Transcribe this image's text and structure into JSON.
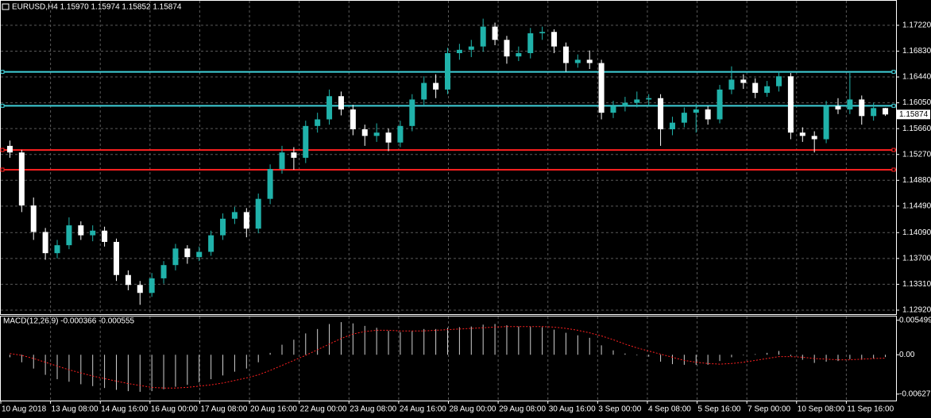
{
  "chart_data": {
    "type": "candlestick",
    "title": "EURUSD,H4  1.15970 1.15974 1.15852 1.15874",
    "ylim": [
      1.1286,
      1.1759
    ],
    "yticks": [
      {
        "value": 1.1722,
        "label": "1.17220"
      },
      {
        "value": 1.1683,
        "label": "1.16830"
      },
      {
        "value": 1.1644,
        "label": "1.16440"
      },
      {
        "value": 1.1605,
        "label": "1.16050"
      },
      {
        "value": 1.1566,
        "label": "1.15660"
      },
      {
        "value": 1.1527,
        "label": "1.15270"
      },
      {
        "value": 1.1488,
        "label": "1.14880"
      },
      {
        "value": 1.1449,
        "label": "1.14490"
      },
      {
        "value": 1.1409,
        "label": "1.14090"
      },
      {
        "value": 1.137,
        "label": "1.13700"
      },
      {
        "value": 1.1331,
        "label": "1.13310"
      },
      {
        "value": 1.1292,
        "label": "1.12920"
      }
    ],
    "up_color": "#20b2aa",
    "down_color": "#ffffff",
    "grid": true,
    "xlabels": [
      "10 Aug 2018",
      "13 Aug 08:00",
      "14 Aug 16:00",
      "16 Aug 00:00",
      "17 Aug 08:00",
      "20 Aug 16:00",
      "22 Aug 00:00",
      "23 Aug 08:00",
      "24 Aug 16:00",
      "28 Aug 00:00",
      "29 Aug 08:00",
      "30 Aug 16:00",
      "3 Sep 00:00",
      "4 Sep 08:00",
      "5 Sep 16:00",
      "7 Sep 00:00",
      "10 Sep 08:00",
      "11 Sep 16:00"
    ],
    "hlines": [
      {
        "value": 1.16517,
        "color": "#40d0d8"
      },
      {
        "value": 1.16005,
        "color": "#40d0d8"
      },
      {
        "value": 1.15338,
        "color": "#ff2020"
      },
      {
        "value": 1.1504,
        "color": "#ff2020"
      }
    ],
    "ohlc": [
      [
        1.154,
        1.1548,
        1.1522,
        1.153
      ],
      [
        1.153,
        1.1534,
        1.144,
        1.145
      ],
      [
        1.145,
        1.1462,
        1.1398,
        1.141
      ],
      [
        1.141,
        1.1416,
        1.1368,
        1.1378
      ],
      [
        1.1378,
        1.1398,
        1.137,
        1.139
      ],
      [
        1.139,
        1.1432,
        1.1384,
        1.142
      ],
      [
        1.142,
        1.1426,
        1.1398,
        1.1405
      ],
      [
        1.1405,
        1.142,
        1.1396,
        1.1412
      ],
      [
        1.1412,
        1.1418,
        1.1388,
        1.1395
      ],
      [
        1.1395,
        1.14,
        1.1336,
        1.1345
      ],
      [
        1.1345,
        1.1352,
        1.1322,
        1.133
      ],
      [
        1.133,
        1.1336,
        1.13,
        1.1318
      ],
      [
        1.1318,
        1.1348,
        1.1312,
        1.134
      ],
      [
        1.134,
        1.1366,
        1.1332,
        1.136
      ],
      [
        1.136,
        1.1392,
        1.1352,
        1.1385
      ],
      [
        1.1385,
        1.139,
        1.1362,
        1.1372
      ],
      [
        1.1372,
        1.1388,
        1.1366,
        1.138
      ],
      [
        1.138,
        1.1412,
        1.1374,
        1.1405
      ],
      [
        1.1405,
        1.1438,
        1.1398,
        1.143
      ],
      [
        1.143,
        1.1448,
        1.1422,
        1.144
      ],
      [
        1.144,
        1.1446,
        1.1402,
        1.1415
      ],
      [
        1.1415,
        1.1468,
        1.1408,
        1.146
      ],
      [
        1.146,
        1.1512,
        1.1452,
        1.1505
      ],
      [
        1.1505,
        1.154,
        1.1498,
        1.153
      ],
      [
        1.153,
        1.1538,
        1.1504,
        1.1522
      ],
      [
        1.1522,
        1.1578,
        1.1514,
        1.157
      ],
      [
        1.157,
        1.159,
        1.156,
        1.158
      ],
      [
        1.158,
        1.1625,
        1.1572,
        1.1615
      ],
      [
        1.1615,
        1.1622,
        1.1586,
        1.1595
      ],
      [
        1.1595,
        1.1602,
        1.1556,
        1.1565
      ],
      [
        1.1565,
        1.1572,
        1.154,
        1.1555
      ],
      [
        1.1555,
        1.1574,
        1.1546,
        1.156
      ],
      [
        1.156,
        1.1566,
        1.1532,
        1.1545
      ],
      [
        1.1545,
        1.1578,
        1.1538,
        1.157
      ],
      [
        1.157,
        1.1618,
        1.1562,
        1.161
      ],
      [
        1.161,
        1.1645,
        1.1602,
        1.1635
      ],
      [
        1.1635,
        1.1648,
        1.1612,
        1.1625
      ],
      [
        1.1625,
        1.1688,
        1.1618,
        1.168
      ],
      [
        1.168,
        1.1694,
        1.167,
        1.1685
      ],
      [
        1.1685,
        1.17,
        1.1674,
        1.169
      ],
      [
        1.169,
        1.1732,
        1.1682,
        1.172
      ],
      [
        1.172,
        1.1726,
        1.1692,
        1.17
      ],
      [
        1.17,
        1.1706,
        1.1664,
        1.1675
      ],
      [
        1.1675,
        1.169,
        1.1668,
        1.168
      ],
      [
        1.168,
        1.1718,
        1.1672,
        1.171
      ],
      [
        1.171,
        1.172,
        1.17,
        1.1712
      ],
      [
        1.1712,
        1.1716,
        1.168,
        1.169
      ],
      [
        1.169,
        1.1696,
        1.1652,
        1.1665
      ],
      [
        1.1665,
        1.1678,
        1.1658,
        1.167
      ],
      [
        1.167,
        1.1684,
        1.1656,
        1.1665
      ],
      [
        1.1665,
        1.167,
        1.158,
        1.159
      ],
      [
        1.159,
        1.1608,
        1.1582,
        1.16
      ],
      [
        1.16,
        1.1614,
        1.1592,
        1.1605
      ],
      [
        1.1605,
        1.1622,
        1.1598,
        1.161
      ],
      [
        1.161,
        1.1618,
        1.16,
        1.1612
      ],
      [
        1.1612,
        1.1618,
        1.154,
        1.1565
      ],
      [
        1.1565,
        1.1584,
        1.1556,
        1.1575
      ],
      [
        1.1575,
        1.1598,
        1.1568,
        1.159
      ],
      [
        1.159,
        1.1604,
        1.156,
        1.1595
      ],
      [
        1.1595,
        1.16,
        1.1572,
        1.158
      ],
      [
        1.158,
        1.1632,
        1.1574,
        1.1625
      ],
      [
        1.1625,
        1.166,
        1.1618,
        1.164
      ],
      [
        1.164,
        1.1648,
        1.1626,
        1.1635
      ],
      [
        1.1635,
        1.1642,
        1.1612,
        1.162
      ],
      [
        1.162,
        1.1638,
        1.1614,
        1.163
      ],
      [
        1.163,
        1.1652,
        1.1622,
        1.1645
      ],
      [
        1.1645,
        1.165,
        1.155,
        1.156
      ],
      [
        1.156,
        1.1568,
        1.1546,
        1.1555
      ],
      [
        1.1555,
        1.1562,
        1.153,
        1.155
      ],
      [
        1.155,
        1.1608,
        1.1544,
        1.16
      ],
      [
        1.16,
        1.1612,
        1.1588,
        1.1595
      ],
      [
        1.1595,
        1.165,
        1.1588,
        1.161
      ],
      [
        1.161,
        1.1616,
        1.1572,
        1.1585
      ],
      [
        1.1585,
        1.1605,
        1.1578,
        1.1597
      ],
      [
        1.1597,
        1.15974,
        1.15852,
        1.15874
      ]
    ],
    "macd": {
      "title": "MACD(12,26,9) -0.000366 -0.000555",
      "ylim": [
        -0.0073,
        0.0061
      ],
      "yticks": [
        0.005499,
        {
          "value": 0,
          "label": "0.00"
        },
        -0.006272
      ],
      "hist_color": "#d0d0d0",
      "signal_color": "#ff2020",
      "histogram": [
        -0.0004,
        -0.0012,
        -0.0022,
        -0.0032,
        -0.0039,
        -0.0043,
        -0.0047,
        -0.005,
        -0.0053,
        -0.0056,
        -0.0058,
        -0.0059,
        -0.0058,
        -0.0055,
        -0.0051,
        -0.0048,
        -0.0044,
        -0.0039,
        -0.0033,
        -0.0027,
        -0.0022,
        -0.0012,
        0.0003,
        0.0016,
        0.0024,
        0.0034,
        0.0041,
        0.0049,
        0.0052,
        0.005,
        0.0046,
        0.0043,
        0.0038,
        0.0036,
        0.0038,
        0.0041,
        0.0041,
        0.0043,
        0.0044,
        0.0045,
        0.0048,
        0.0049,
        0.0047,
        0.0045,
        0.0045,
        0.0044,
        0.004,
        0.0035,
        0.0031,
        0.0027,
        0.0015,
        0.0007,
        0.0002,
        -0.0001,
        -0.0003,
        -0.0011,
        -0.0015,
        -0.0016,
        -0.0016,
        -0.0016,
        -0.001,
        -0.0004,
        -0.0001,
        0.0001,
        0.0003,
        0.0006,
        -0.0002,
        -0.0008,
        -0.0013,
        -0.0011,
        -0.001,
        -0.0007,
        -0.0008,
        -0.0006,
        -0.000366
      ],
      "signal": [
        0.0002,
        -0.0001,
        -0.0006,
        -0.0012,
        -0.0018,
        -0.0024,
        -0.0029,
        -0.0034,
        -0.0038,
        -0.0042,
        -0.0046,
        -0.0049,
        -0.0052,
        -0.0053,
        -0.0053,
        -0.0052,
        -0.005,
        -0.0048,
        -0.0045,
        -0.0041,
        -0.0037,
        -0.0032,
        -0.0025,
        -0.0017,
        -0.0009,
        -0.0001,
        0.0008,
        0.0017,
        0.0026,
        0.0033,
        0.0037,
        0.0039,
        0.0039,
        0.0038,
        0.0038,
        0.0038,
        0.0039,
        0.004,
        0.0041,
        0.0042,
        0.0043,
        0.0044,
        0.0045,
        0.0045,
        0.0045,
        0.0045,
        0.0044,
        0.0042,
        0.0039,
        0.0035,
        0.003,
        0.0024,
        0.0017,
        0.0011,
        0.0006,
        0.0001,
        -0.0004,
        -0.0009,
        -0.0012,
        -0.0014,
        -0.0015,
        -0.0014,
        -0.0012,
        -0.0009,
        -0.0006,
        -0.0003,
        -0.0003,
        -0.0004,
        -0.0006,
        -0.0007,
        -0.0008,
        -0.0008,
        -0.0007,
        -0.0006,
        -0.000555
      ]
    }
  }
}
